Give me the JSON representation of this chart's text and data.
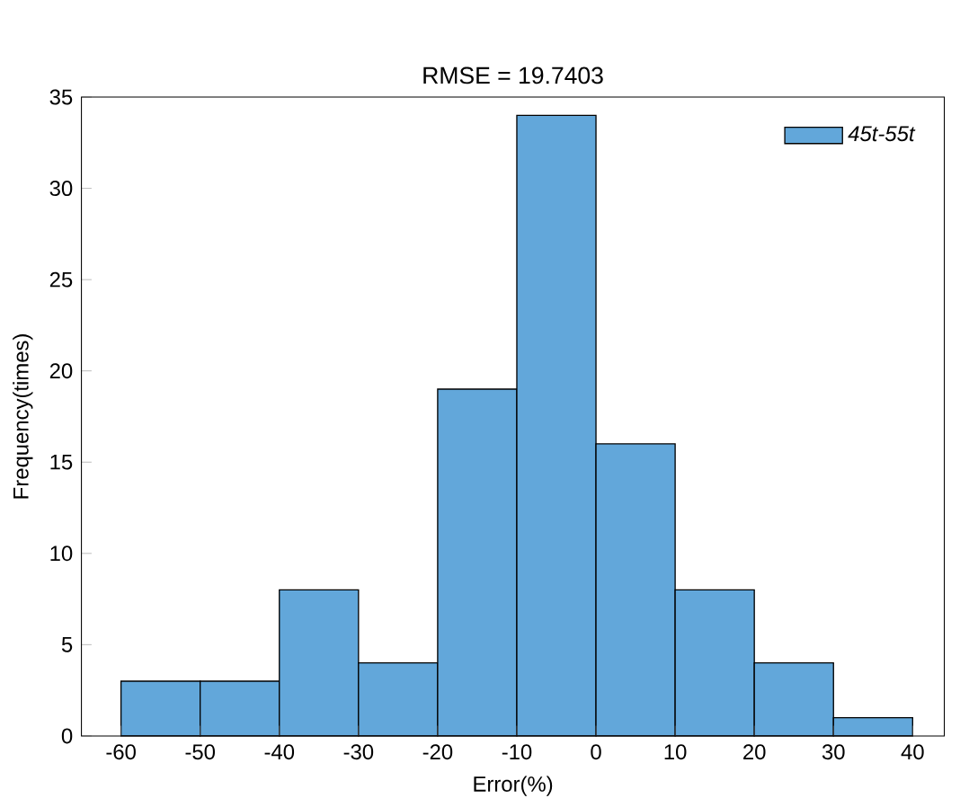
{
  "chart_data": {
    "type": "histogram",
    "title": "RMSE = 19.7403",
    "xlabel": "Error(%)",
    "ylabel": "Frequency(times)",
    "bins": [
      -60,
      -50,
      -40,
      -30,
      -20,
      -10,
      0,
      10,
      20,
      30,
      40
    ],
    "series": [
      {
        "name": "45t-55t",
        "color": "#62a7da",
        "values": [
          3,
          3,
          8,
          4,
          19,
          34,
          16,
          8,
          4,
          1
        ]
      }
    ],
    "xlim": [
      -65,
      44
    ],
    "ylim": [
      0,
      35
    ],
    "xticks": [
      -60,
      -50,
      -40,
      -30,
      -20,
      -10,
      0,
      10,
      20,
      30,
      40
    ],
    "yticks": [
      0,
      5,
      10,
      15,
      20,
      25,
      30,
      35
    ],
    "legend": "top right",
    "grid": false
  }
}
